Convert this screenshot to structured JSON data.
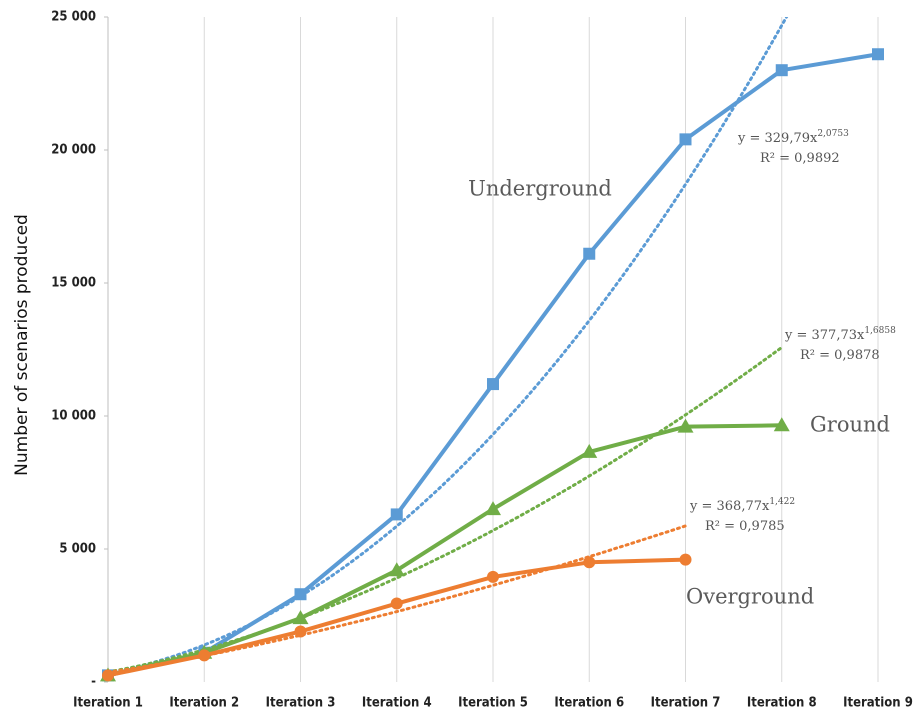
{
  "chart_data": {
    "type": "line",
    "y_label": "Number of scenarios produced",
    "categories": [
      "Iteration 1",
      "Iteration 2",
      "Iteration 3",
      "Iteration 4",
      "Iteration 5",
      "Iteration 6",
      "Iteration 7",
      "Iteration 8",
      "Iteration 9"
    ],
    "series": [
      {
        "name": "Underground",
        "color": "#5b9bd5",
        "marker": "square",
        "values": [
          250,
          1100,
          3300,
          6300,
          11200,
          16100,
          20400,
          23000,
          23600
        ],
        "trendline": {
          "equation": "y = 329,79x",
          "exponent": "2,0753",
          "r_squared": "R² = 0,9892",
          "coefficient": 329.79,
          "power": 2.0753
        }
      },
      {
        "name": "Ground",
        "color": "#70ad47",
        "marker": "triangle",
        "values": [
          250,
          1100,
          2400,
          4200,
          6500,
          8650,
          9600,
          9650,
          null
        ],
        "trendline": {
          "equation": "y = 377,73x",
          "exponent": "1,6858",
          "r_squared": "R² = 0,9878",
          "coefficient": 377.73,
          "power": 1.6858
        }
      },
      {
        "name": "Overground",
        "color": "#ed7d31",
        "marker": "circle",
        "values": [
          250,
          1000,
          1900,
          2950,
          3950,
          4500,
          4600,
          null,
          null
        ],
        "trendline": {
          "equation": "y = 368,77x",
          "exponent": "1,422",
          "r_squared": "R² = 0,9785",
          "coefficient": 368.77,
          "power": 1.422
        }
      }
    ],
    "ylim": [
      0,
      25000
    ],
    "yticks": [
      {
        "value": 0,
        "label": "-"
      },
      {
        "value": 5000,
        "label": "5 000"
      },
      {
        "value": 10000,
        "label": "10 000"
      },
      {
        "value": 15000,
        "label": "15 000"
      },
      {
        "value": 20000,
        "label": "20 000"
      },
      {
        "value": 25000,
        "label": "25 000"
      }
    ],
    "grid": true
  }
}
